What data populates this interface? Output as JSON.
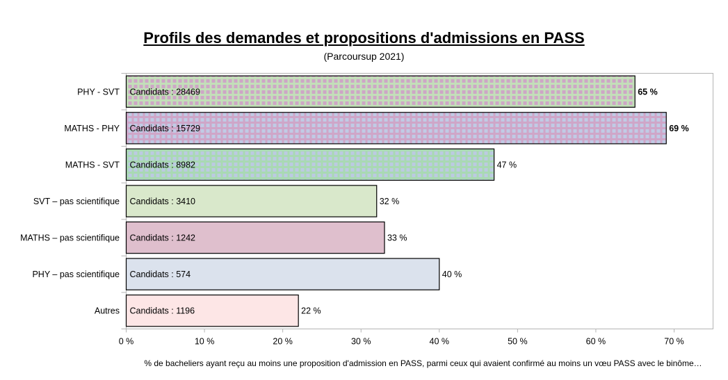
{
  "chart_data": {
    "type": "bar",
    "orientation": "horizontal",
    "title": "Profils des demandes et propositions d'admissions en PASS",
    "subtitle": "(Parcoursup 2021)",
    "xlabel": "% de bacheliers ayant reçu au moins une proposition d'admission en PASS, parmi ceux qui avaient confirmé au moins un vœu PASS avec le binôme…",
    "ylabel": "",
    "xlim": [
      0,
      75
    ],
    "x_ticks": [
      0,
      10,
      20,
      30,
      40,
      50,
      60,
      70
    ],
    "x_tick_labels": [
      "0 %",
      "10 %",
      "20 %",
      "30 %",
      "40 %",
      "50 %",
      "60 %",
      "70 %"
    ],
    "grid": false,
    "legend": "none",
    "categories": [
      "PHY - SVT",
      "MATHS - PHY",
      "MATHS - SVT",
      "SVT – pas scientifique",
      "MATHS – pas scientifique",
      "PHY – pas scientifique",
      "Autres"
    ],
    "values": [
      65,
      69,
      47,
      32,
      33,
      40,
      22
    ],
    "value_labels": [
      "65 %",
      "69 %",
      "47 %",
      "32 %",
      "33 %",
      "40 %",
      "22 %"
    ],
    "value_labels_bold": [
      true,
      true,
      false,
      false,
      false,
      false,
      false
    ],
    "candidates_prefix": "Candidats :",
    "candidates": [
      28469,
      15729,
      8982,
      3410,
      1242,
      574,
      1196
    ],
    "bar_styles": [
      {
        "pattern": "squares",
        "bg": "#c3dfb9",
        "fg": "#cea6c6"
      },
      {
        "pattern": "squares",
        "bg": "#cfa6c8",
        "fg": "#c0cbe5"
      },
      {
        "pattern": "squares",
        "bg": "#a9d9b3",
        "fg": "#bccae2"
      },
      {
        "pattern": "solid",
        "bg": "#d9e8cb"
      },
      {
        "pattern": "solid",
        "bg": "#dfbfcd"
      },
      {
        "pattern": "solid",
        "bg": "#dbe2ed"
      },
      {
        "pattern": "solid",
        "bg": "#fde6e6"
      }
    ]
  }
}
